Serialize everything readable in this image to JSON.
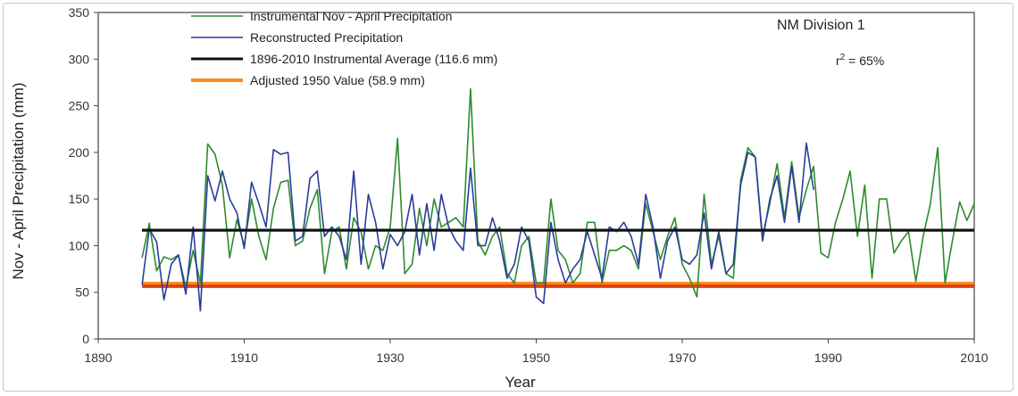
{
  "chart_data": {
    "type": "line",
    "title": "",
    "xlabel": "Year",
    "ylabel": "Nov - April Precipitation (mm)",
    "xlim": [
      1890,
      2010
    ],
    "ylim": [
      0,
      350
    ],
    "x_ticks": [
      1890,
      1910,
      1930,
      1950,
      1970,
      1990,
      2010
    ],
    "y_ticks": [
      0,
      50,
      100,
      150,
      200,
      250,
      300,
      350
    ],
    "x_tick_labels": [
      "1890",
      "1910",
      "1930",
      "1950",
      "1970",
      "1990",
      "2010"
    ],
    "y_tick_labels": [
      "0",
      "50",
      "100",
      "150",
      "200",
      "250",
      "300",
      "350"
    ],
    "grid": false,
    "legend_position": "top-left",
    "annotations": {
      "division": "NM Division 1",
      "r2_prefix": "r",
      "r2_sup": "2",
      "r2_suffix": " = 65%"
    },
    "series": [
      {
        "name": "Instrumental Nov - April Precipitation",
        "color": "#2e8b2e",
        "kind": "line",
        "x": [
          1896,
          1897,
          1898,
          1899,
          1900,
          1901,
          1902,
          1903,
          1904,
          1905,
          1906,
          1907,
          1908,
          1909,
          1910,
          1911,
          1912,
          1913,
          1914,
          1915,
          1916,
          1917,
          1918,
          1919,
          1920,
          1921,
          1922,
          1923,
          1924,
          1925,
          1926,
          1927,
          1928,
          1929,
          1930,
          1931,
          1932,
          1933,
          1934,
          1935,
          1936,
          1937,
          1938,
          1939,
          1940,
          1941,
          1942,
          1943,
          1944,
          1945,
          1946,
          1947,
          1948,
          1949,
          1950,
          1951,
          1952,
          1953,
          1954,
          1955,
          1956,
          1957,
          1958,
          1959,
          1960,
          1961,
          1962,
          1963,
          1964,
          1965,
          1966,
          1967,
          1968,
          1969,
          1970,
          1971,
          1972,
          1973,
          1974,
          1975,
          1976,
          1977,
          1978,
          1979,
          1980,
          1981,
          1982,
          1983,
          1984,
          1985,
          1986,
          1987,
          1988,
          1989,
          1990,
          1991,
          1992,
          1993,
          1994,
          1995,
          1996,
          1997,
          1998,
          1999,
          2000,
          2001,
          2002,
          2003,
          2004,
          2005,
          2006,
          2007,
          2008,
          2009,
          2010
        ],
        "y": [
          87,
          124,
          73,
          88,
          85,
          90,
          55,
          95,
          60,
          209,
          198,
          165,
          87,
          128,
          100,
          150,
          110,
          85,
          140,
          168,
          170,
          100,
          105,
          140,
          160,
          70,
          115,
          120,
          75,
          130,
          115,
          75,
          100,
          95,
          120,
          215,
          70,
          80,
          140,
          100,
          150,
          120,
          125,
          130,
          120,
          268,
          105,
          90,
          110,
          120,
          70,
          60,
          100,
          110,
          60,
          60,
          150,
          95,
          85,
          60,
          70,
          125,
          125,
          60,
          95,
          95,
          100,
          95,
          75,
          145,
          115,
          85,
          110,
          130,
          80,
          65,
          45,
          155,
          80,
          110,
          70,
          65,
          170,
          205,
          195,
          110,
          145,
          188,
          130,
          190,
          130,
          160,
          185,
          92,
          87,
          125,
          150,
          180,
          110,
          165,
          65,
          150,
          150,
          92,
          105,
          115,
          62,
          110,
          145,
          205,
          60,
          105,
          147,
          127,
          145
        ]
      },
      {
        "name": "Reconstructed Precipitation",
        "color": "#2a3d9b",
        "kind": "line",
        "x": [
          1896,
          1897,
          1898,
          1899,
          1900,
          1901,
          1902,
          1903,
          1904,
          1905,
          1906,
          1907,
          1908,
          1909,
          1910,
          1911,
          1912,
          1913,
          1914,
          1915,
          1916,
          1917,
          1918,
          1919,
          1920,
          1921,
          1922,
          1923,
          1924,
          1925,
          1926,
          1927,
          1928,
          1929,
          1930,
          1931,
          1932,
          1933,
          1934,
          1935,
          1936,
          1937,
          1938,
          1939,
          1940,
          1941,
          1942,
          1943,
          1944,
          1945,
          1946,
          1947,
          1948,
          1949,
          1950,
          1951,
          1952,
          1953,
          1954,
          1955,
          1956,
          1957,
          1958,
          1959,
          1960,
          1961,
          1962,
          1963,
          1964,
          1965,
          1966,
          1967,
          1968,
          1969,
          1970,
          1971,
          1972,
          1973,
          1974,
          1975,
          1976,
          1977,
          1978,
          1979,
          1980,
          1981,
          1982,
          1983,
          1984,
          1985,
          1986,
          1987,
          1988
        ],
        "y": [
          58,
          118,
          104,
          42,
          80,
          90,
          48,
          120,
          30,
          175,
          148,
          180,
          150,
          135,
          97,
          168,
          145,
          120,
          203,
          198,
          200,
          105,
          110,
          172,
          180,
          110,
          120,
          110,
          85,
          180,
          80,
          155,
          125,
          75,
          112,
          100,
          115,
          155,
          90,
          145,
          95,
          155,
          120,
          105,
          95,
          183,
          100,
          100,
          130,
          105,
          65,
          80,
          120,
          105,
          45,
          38,
          125,
          85,
          60,
          75,
          85,
          115,
          90,
          65,
          120,
          115,
          125,
          110,
          80,
          155,
          120,
          65,
          105,
          120,
          85,
          80,
          90,
          135,
          75,
          115,
          70,
          80,
          165,
          200,
          195,
          105,
          150,
          175,
          125,
          185,
          125,
          210,
          160
        ]
      },
      {
        "name": "1896-2010 Instrumental Average (116.6 mm)",
        "color": "#111111",
        "kind": "hline",
        "value": 116.6,
        "x_range": [
          1896,
          2010
        ]
      },
      {
        "name": "Adjusted 1950 Value (58.9 mm)",
        "color": "#ff8c1a",
        "kind": "hline",
        "value": 58.9,
        "x_range": [
          1896,
          2010
        ]
      }
    ]
  }
}
